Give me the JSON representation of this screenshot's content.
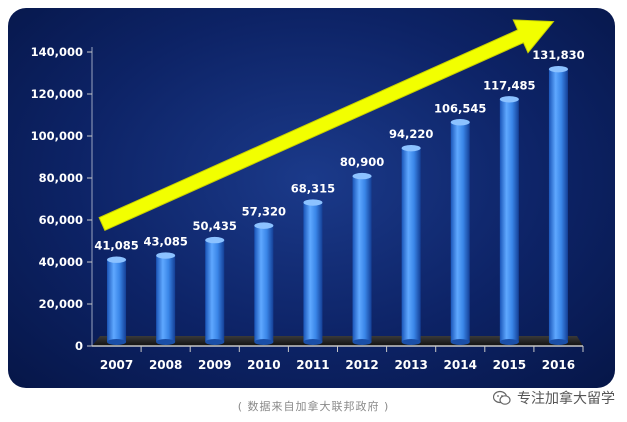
{
  "chart_data": {
    "type": "bar",
    "categories": [
      "2007",
      "2008",
      "2009",
      "2010",
      "2011",
      "2012",
      "2013",
      "2014",
      "2015",
      "2016"
    ],
    "values": [
      41085,
      43085,
      50435,
      57320,
      68315,
      80900,
      94220,
      106545,
      117485,
      131830
    ],
    "value_labels": [
      "41,085",
      "43,085",
      "50,435",
      "57,320",
      "68,315",
      "80,900",
      "94,220",
      "106,545",
      "117,485",
      "131,830"
    ],
    "yticks": [
      0,
      20000,
      40000,
      60000,
      80000,
      100000,
      120000,
      140000
    ],
    "ytick_labels": [
      "0",
      "20,000",
      "40,000",
      "60,000",
      "80,000",
      "100,000",
      "120,000",
      "140,000"
    ],
    "ylim": [
      0,
      140000
    ],
    "title": "",
    "xlabel": "",
    "ylabel": "",
    "grid": false,
    "colors": {
      "bar": "#2f7de0",
      "bar_light": "#5fa8ff",
      "arrow": "#f2ff00",
      "panel": "#0d2366",
      "axis_text": "#ffffff"
    }
  },
  "caption": {
    "source_note": "( 数据来自加拿大联邦政府 )"
  },
  "watermark": {
    "text": "专注加拿大留学",
    "icon": "wechat-icon"
  }
}
